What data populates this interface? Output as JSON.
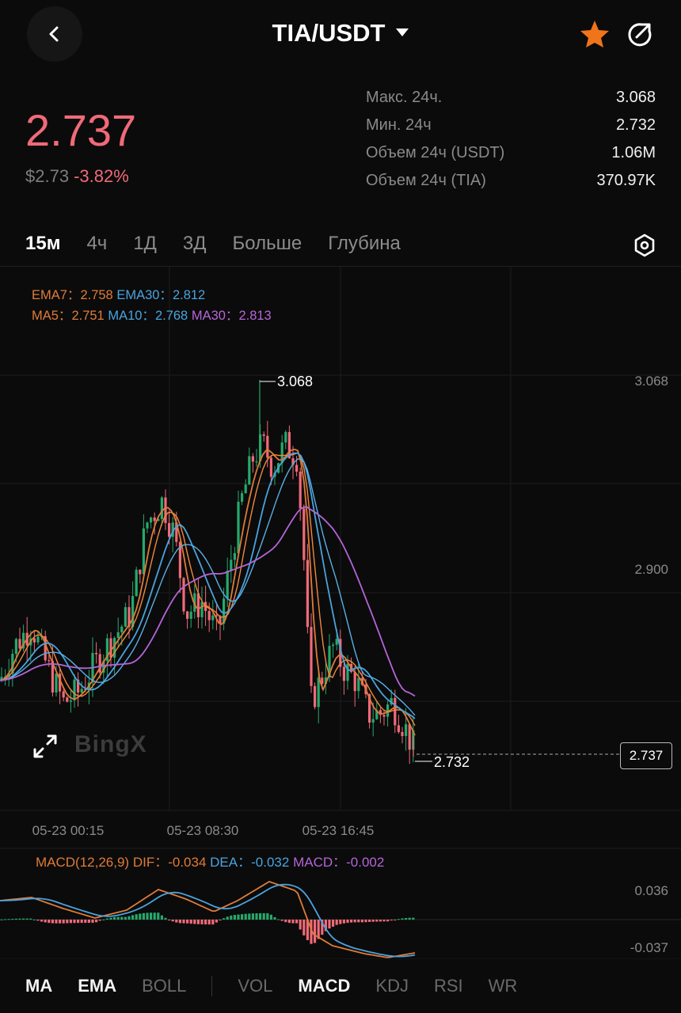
{
  "header": {
    "pair": "TIA/USDT",
    "icons": {
      "back": "back-arrow-icon",
      "dropdown": "caret-down-icon",
      "favorite": "star-icon",
      "share": "share-icon"
    },
    "favorite_color": "#f0741a"
  },
  "price": {
    "last": "2.737",
    "usd": "$2.73",
    "change": "-3.82%",
    "color": "#f06a79"
  },
  "stats": [
    {
      "label": "Макс. 24ч.",
      "value": "3.068"
    },
    {
      "label": "Мин. 24ч",
      "value": "2.732"
    },
    {
      "label": "Объем 24ч (USDT)",
      "value": "1.06M"
    },
    {
      "label": "Объем 24ч (TIA)",
      "value": "370.97K"
    }
  ],
  "tabs": [
    "15м",
    "4ч",
    "1Д",
    "3Д",
    "Больше",
    "Глубина"
  ],
  "active_tab": "15м",
  "legend": {
    "line1": [
      {
        "label": "EMA7：",
        "value": "2.758",
        "color": "#e07b39"
      },
      {
        "label": "EMA30：",
        "value": "2.812",
        "color": "#4aa3df"
      }
    ],
    "line2": [
      {
        "label": "MA5：",
        "value": "2.751",
        "color": "#e07b39"
      },
      {
        "label": "MA10：",
        "value": "2.768",
        "color": "#4aa3df"
      },
      {
        "label": "MA30：",
        "value": "2.813",
        "color": "#b565d8"
      }
    ]
  },
  "chart_data": {
    "type": "candlestick",
    "y_ticks": [
      "3.068",
      "2.900"
    ],
    "high_label": "3.068",
    "low_label": "2.732",
    "current_price_label": "2.737",
    "x_ticks": [
      "05-23 00:15",
      "05-23 08:30",
      "05-23 16:45"
    ],
    "watermark": "BingX",
    "macd": {
      "title": "MACD(12,26,9)",
      "dif_label": "DIF：",
      "dif": "-0.034",
      "dea_label": "DEA：",
      "dea": "-0.032",
      "macd_label": "MACD：",
      "macd": "-0.002",
      "y_ticks": [
        "0.036",
        "-0.037"
      ]
    }
  },
  "indicators": {
    "main": [
      "MA",
      "EMA",
      "BOLL"
    ],
    "sub": [
      "VOL",
      "MACD",
      "KDJ",
      "RSI",
      "WR"
    ],
    "active": [
      "MA",
      "EMA",
      "MACD"
    ]
  },
  "colors": {
    "up": "#26a96c",
    "down": "#f06a79",
    "ema_fast": "#e07b39",
    "ema_slow": "#4aa3df",
    "ma30": "#b565d8"
  }
}
